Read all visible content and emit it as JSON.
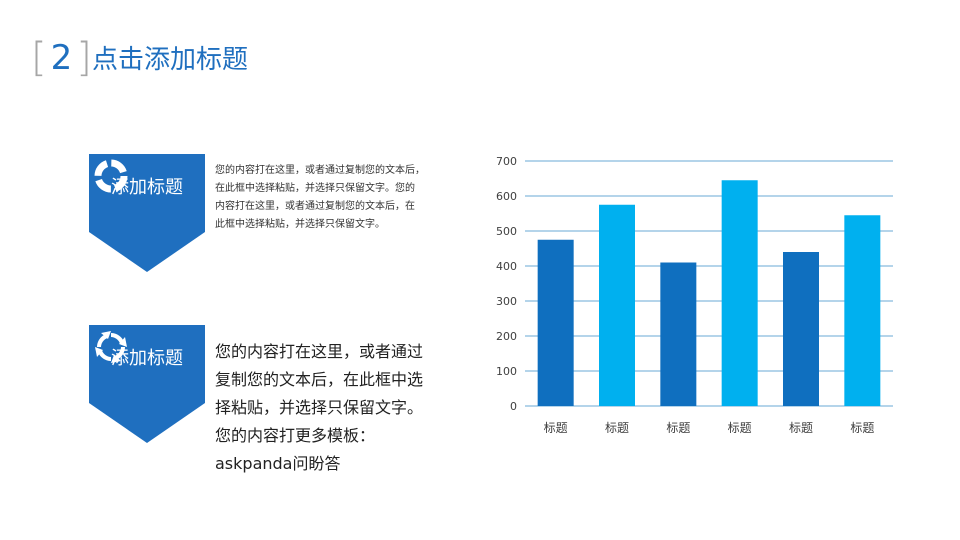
{
  "header": {
    "number": "2",
    "title": "点击添加标题"
  },
  "banners": [
    {
      "label": "添加标题",
      "icon": "donut-chart-icon"
    },
    {
      "label": "添加标题",
      "icon": "cycle-arrows-icon"
    }
  ],
  "text_small": [
    "您的内容打在这里，或者通过复制您的文本后，",
    "在此框中选择粘贴，并选择只保留文字。您的",
    "内容打在这里，或者通过复制您的文本后，在",
    "此框中选择粘贴，并选择只保留文字。"
  ],
  "text_large": [
    "您的内容打在这里，或者通过",
    "复制您的文本后，在此框中选",
    "择粘贴，并选择只保留文字。",
    "您的内容打更多模板：",
    "askpanda问盼答"
  ],
  "colors": {
    "accent": "#1f6fbf",
    "bar_dark": "#0f6fbf",
    "bar_light": "#00b0ef",
    "gridline": "#6aa9d6"
  },
  "chart_data": {
    "type": "bar",
    "categories": [
      "标题",
      "标题",
      "标题",
      "标题",
      "标题",
      "标题"
    ],
    "values": [
      475,
      575,
      410,
      645,
      440,
      545
    ],
    "bar_colors": [
      "#0f6fbf",
      "#00b0ef",
      "#0f6fbf",
      "#00b0ef",
      "#0f6fbf",
      "#00b0ef"
    ],
    "ylim": [
      0,
      700
    ],
    "yticks": [
      0,
      100,
      200,
      300,
      400,
      500,
      600,
      700
    ],
    "grid": true,
    "title": "",
    "xlabel": "",
    "ylabel": ""
  }
}
